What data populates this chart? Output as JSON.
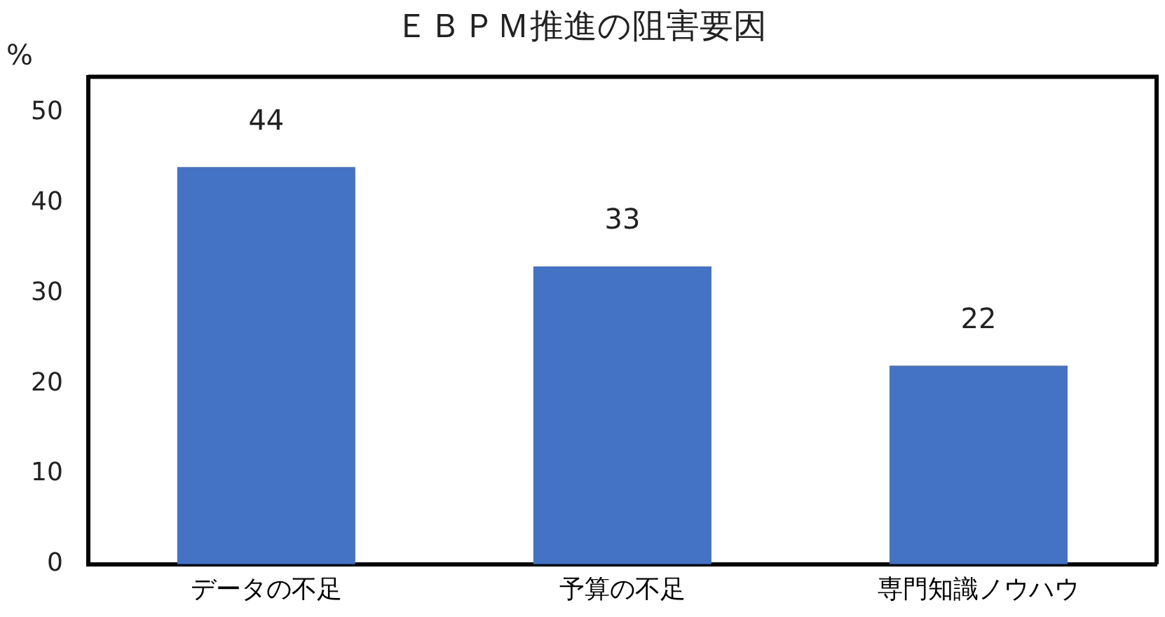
{
  "chart_data": {
    "type": "bar",
    "title": "ＥＢＰＭ推進の阻害要因",
    "ylabel": "%",
    "categories": [
      "データの不足",
      "予算の不足",
      "専門知識ノウハウ"
    ],
    "values": [
      44,
      33,
      22
    ],
    "color": "#4472c4",
    "ylim": [
      0,
      54
    ],
    "yticks": [
      0,
      10,
      20,
      30,
      40,
      50
    ],
    "grid": false,
    "legend": false,
    "data_labels": true
  }
}
